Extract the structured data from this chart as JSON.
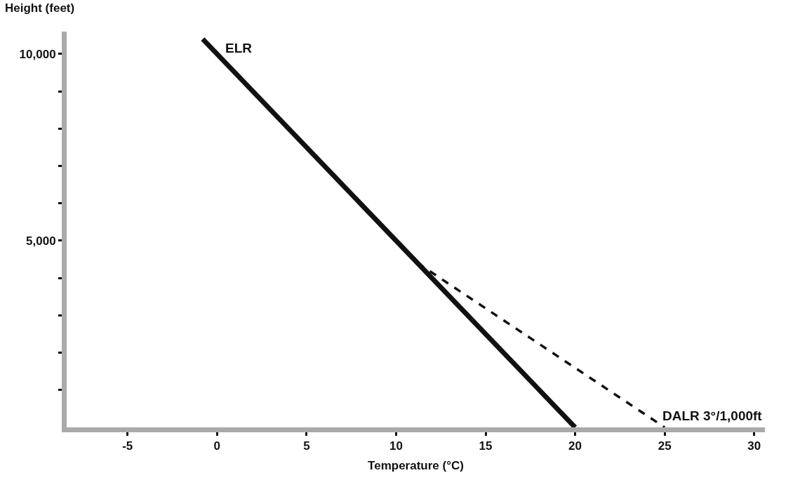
{
  "chart_data": {
    "type": "line",
    "xlabel": "Temperature (°C)",
    "ylabel": "Height (feet)",
    "series": [
      {
        "name": "ELR",
        "color": "#111111",
        "x": [
          -0.8,
          20
        ],
        "values": [
          10400,
          0
        ],
        "line_style": "solid"
      },
      {
        "name": "DALR 3°/1,000ft",
        "color": "#111111",
        "x": [
          11.2,
          25
        ],
        "values": [
          4400,
          0
        ],
        "line_style": "dashed"
      }
    ],
    "xlim": [
      -8.4,
      30.6
    ],
    "ylim": [
      0,
      10600
    ],
    "xticks": [
      -5,
      0,
      5,
      10,
      15,
      20,
      25,
      30
    ],
    "yticks": [
      {
        "value": 1000,
        "label": null
      },
      {
        "value": 2000,
        "label": null
      },
      {
        "value": 3000,
        "label": null
      },
      {
        "value": 4000,
        "label": null
      },
      {
        "value": 5000,
        "label": "5,000"
      },
      {
        "value": 6000,
        "label": null
      },
      {
        "value": 7000,
        "label": null
      },
      {
        "value": 8000,
        "label": null
      },
      {
        "value": 9000,
        "label": null
      },
      {
        "value": 10000,
        "label": "10,000"
      }
    ],
    "legend": false,
    "marker": "none"
  }
}
